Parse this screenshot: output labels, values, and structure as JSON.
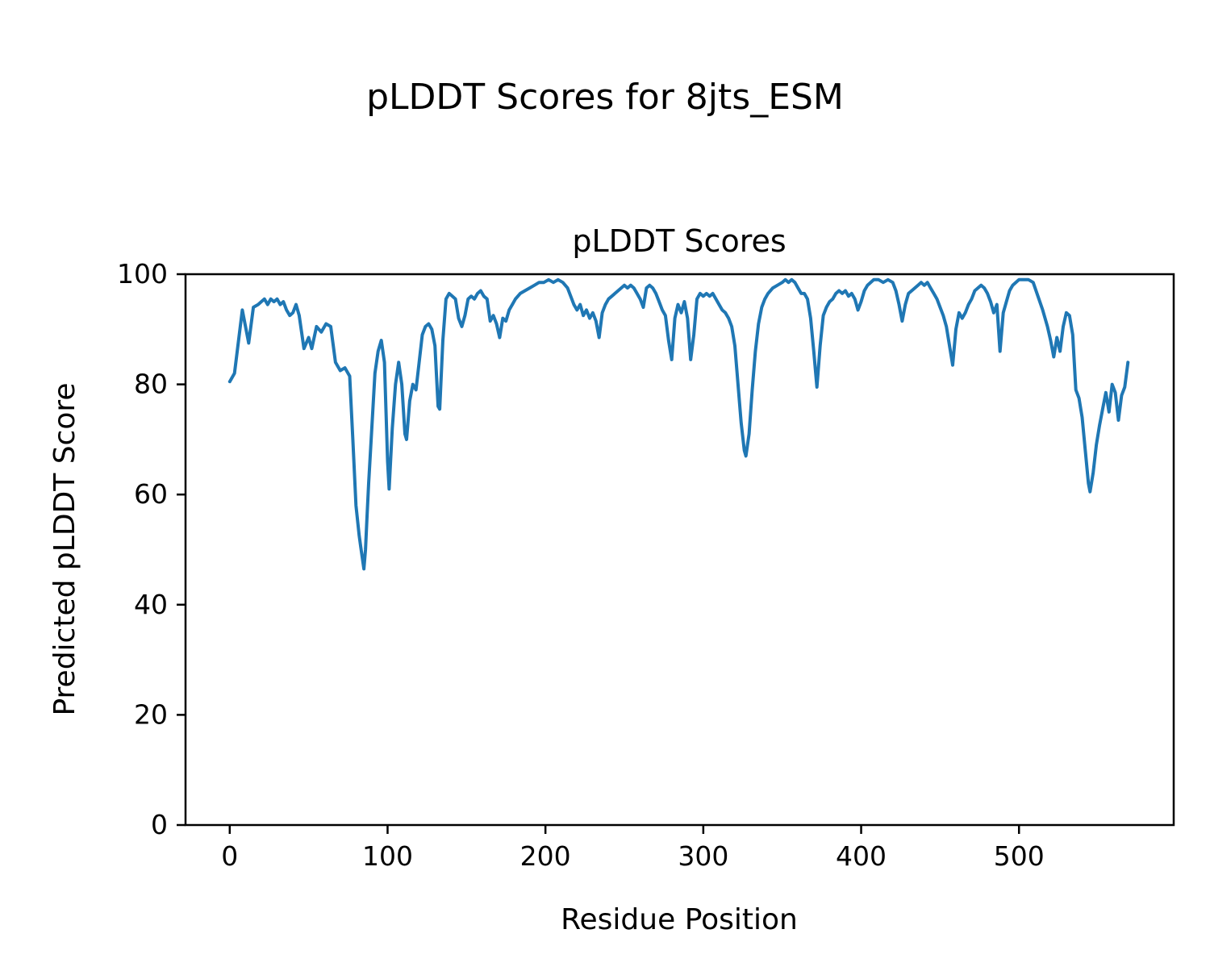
{
  "figure": {
    "background": "#ffffff",
    "spine_color": "#000000"
  },
  "chart_data": {
    "type": "line",
    "suptitle": "pLDDT Scores for 8jts_ESM",
    "title": "pLDDT Scores",
    "xlabel": "Residue Position",
    "ylabel": "Predicted pLDDT Score",
    "xlim": [
      -28,
      598
    ],
    "ylim": [
      0,
      100
    ],
    "xticks": [
      0,
      100,
      200,
      300,
      400,
      500
    ],
    "yticks": [
      0,
      20,
      40,
      60,
      80,
      100
    ],
    "grid": false,
    "legend_position": "none",
    "line_color": "#1f77b4",
    "line_width": 4,
    "series_name": "pLDDT",
    "points": [
      [
        0,
        80.5
      ],
      [
        3,
        82
      ],
      [
        8,
        93.5
      ],
      [
        12,
        87.5
      ],
      [
        15,
        94
      ],
      [
        18,
        94.5
      ],
      [
        20,
        95
      ],
      [
        22,
        95.5
      ],
      [
        24,
        94.5
      ],
      [
        26,
        95.5
      ],
      [
        28,
        95
      ],
      [
        30,
        95.5
      ],
      [
        32,
        94.5
      ],
      [
        34,
        95
      ],
      [
        36,
        93.5
      ],
      [
        38,
        92.5
      ],
      [
        40,
        93
      ],
      [
        42,
        94.5
      ],
      [
        44,
        92.5
      ],
      [
        47,
        86.5
      ],
      [
        50,
        88.5
      ],
      [
        52,
        86.5
      ],
      [
        55,
        90.5
      ],
      [
        58,
        89.5
      ],
      [
        61,
        91
      ],
      [
        64,
        90.5
      ],
      [
        67,
        84
      ],
      [
        70,
        82.5
      ],
      [
        73,
        83
      ],
      [
        76,
        81.5
      ],
      [
        78,
        70
      ],
      [
        80,
        58
      ],
      [
        82,
        52.5
      ],
      [
        83,
        50.5
      ],
      [
        85,
        46.5
      ],
      [
        86,
        50
      ],
      [
        87,
        56
      ],
      [
        88,
        62
      ],
      [
        90,
        72
      ],
      [
        92,
        82
      ],
      [
        94,
        86
      ],
      [
        96,
        88
      ],
      [
        98,
        84
      ],
      [
        100,
        66
      ],
      [
        101,
        61
      ],
      [
        103,
        72
      ],
      [
        105,
        80
      ],
      [
        107,
        84
      ],
      [
        109,
        80
      ],
      [
        111,
        71
      ],
      [
        112,
        70
      ],
      [
        114,
        77
      ],
      [
        116,
        80
      ],
      [
        118,
        79
      ],
      [
        120,
        84
      ],
      [
        122,
        89
      ],
      [
        124,
        90.5
      ],
      [
        126,
        91
      ],
      [
        128,
        90
      ],
      [
        130,
        87
      ],
      [
        132,
        76
      ],
      [
        133,
        75.5
      ],
      [
        135,
        88
      ],
      [
        137,
        95.5
      ],
      [
        139,
        96.5
      ],
      [
        141,
        96
      ],
      [
        143,
        95.5
      ],
      [
        145,
        92
      ],
      [
        147,
        90.5
      ],
      [
        149,
        92.5
      ],
      [
        151,
        95.5
      ],
      [
        153,
        96
      ],
      [
        155,
        95.5
      ],
      [
        157,
        96.5
      ],
      [
        159,
        97
      ],
      [
        161,
        96
      ],
      [
        163,
        95.5
      ],
      [
        165,
        91.5
      ],
      [
        167,
        92.5
      ],
      [
        169,
        91
      ],
      [
        171,
        88.5
      ],
      [
        173,
        92
      ],
      [
        175,
        91.5
      ],
      [
        177,
        93.5
      ],
      [
        179,
        94.5
      ],
      [
        181,
        95.5
      ],
      [
        184,
        96.5
      ],
      [
        187,
        97
      ],
      [
        190,
        97.5
      ],
      [
        193,
        98
      ],
      [
        196,
        98.5
      ],
      [
        199,
        98.5
      ],
      [
        202,
        99
      ],
      [
        205,
        98.5
      ],
      [
        208,
        99
      ],
      [
        211,
        98.5
      ],
      [
        214,
        97.5
      ],
      [
        216,
        96
      ],
      [
        218,
        94.5
      ],
      [
        220,
        93.5
      ],
      [
        222,
        94.5
      ],
      [
        224,
        92.5
      ],
      [
        226,
        93.5
      ],
      [
        228,
        92
      ],
      [
        230,
        93
      ],
      [
        232,
        91.5
      ],
      [
        234,
        88.5
      ],
      [
        236,
        93
      ],
      [
        238,
        94.5
      ],
      [
        240,
        95.5
      ],
      [
        242,
        96
      ],
      [
        244,
        96.5
      ],
      [
        246,
        97
      ],
      [
        248,
        97.5
      ],
      [
        250,
        98
      ],
      [
        252,
        97.5
      ],
      [
        254,
        98
      ],
      [
        256,
        97.5
      ],
      [
        258,
        96.5
      ],
      [
        260,
        95.5
      ],
      [
        262,
        94
      ],
      [
        264,
        97.5
      ],
      [
        266,
        98
      ],
      [
        268,
        97.5
      ],
      [
        270,
        96.5
      ],
      [
        272,
        95
      ],
      [
        274,
        93.5
      ],
      [
        276,
        92.5
      ],
      [
        278,
        88
      ],
      [
        280,
        84.5
      ],
      [
        282,
        92
      ],
      [
        284,
        94.5
      ],
      [
        286,
        93
      ],
      [
        288,
        95
      ],
      [
        290,
        92
      ],
      [
        292,
        84.5
      ],
      [
        294,
        89
      ],
      [
        296,
        95.5
      ],
      [
        298,
        96.5
      ],
      [
        300,
        96
      ],
      [
        302,
        96.5
      ],
      [
        304,
        96
      ],
      [
        306,
        96.5
      ],
      [
        308,
        95.5
      ],
      [
        310,
        94.5
      ],
      [
        312,
        93.5
      ],
      [
        314,
        93
      ],
      [
        316,
        92
      ],
      [
        318,
        90.5
      ],
      [
        320,
        87
      ],
      [
        322,
        80
      ],
      [
        324,
        73
      ],
      [
        326,
        68
      ],
      [
        327,
        67
      ],
      [
        329,
        71
      ],
      [
        331,
        79
      ],
      [
        333,
        86
      ],
      [
        335,
        91
      ],
      [
        337,
        94
      ],
      [
        339,
        95.5
      ],
      [
        341,
        96.5
      ],
      [
        344,
        97.5
      ],
      [
        347,
        98
      ],
      [
        350,
        98.5
      ],
      [
        352,
        99
      ],
      [
        354,
        98.5
      ],
      [
        356,
        99
      ],
      [
        358,
        98.5
      ],
      [
        360,
        97.5
      ],
      [
        362,
        96.5
      ],
      [
        364,
        96.5
      ],
      [
        366,
        95.5
      ],
      [
        368,
        92
      ],
      [
        370,
        86
      ],
      [
        372,
        79.5
      ],
      [
        374,
        87
      ],
      [
        376,
        92.5
      ],
      [
        378,
        94
      ],
      [
        380,
        95
      ],
      [
        382,
        95.5
      ],
      [
        384,
        96.5
      ],
      [
        386,
        97
      ],
      [
        388,
        96.5
      ],
      [
        390,
        97
      ],
      [
        392,
        96
      ],
      [
        394,
        96.5
      ],
      [
        396,
        95.5
      ],
      [
        398,
        93.5
      ],
      [
        400,
        95
      ],
      [
        402,
        97
      ],
      [
        404,
        98
      ],
      [
        406,
        98.5
      ],
      [
        408,
        99
      ],
      [
        411,
        99
      ],
      [
        414,
        98.5
      ],
      [
        417,
        99
      ],
      [
        420,
        98.5
      ],
      [
        422,
        97
      ],
      [
        424,
        94.5
      ],
      [
        426,
        91.5
      ],
      [
        428,
        94.5
      ],
      [
        430,
        96.5
      ],
      [
        432,
        97
      ],
      [
        434,
        97.5
      ],
      [
        436,
        98
      ],
      [
        438,
        98.5
      ],
      [
        440,
        98
      ],
      [
        442,
        98.5
      ],
      [
        444,
        97.5
      ],
      [
        446,
        96.5
      ],
      [
        448,
        95.5
      ],
      [
        450,
        94
      ],
      [
        452,
        92.5
      ],
      [
        454,
        90.5
      ],
      [
        456,
        87
      ],
      [
        458,
        83.5
      ],
      [
        460,
        90
      ],
      [
        462,
        93
      ],
      [
        464,
        92
      ],
      [
        466,
        93
      ],
      [
        468,
        94.5
      ],
      [
        470,
        95.5
      ],
      [
        472,
        97
      ],
      [
        474,
        97.5
      ],
      [
        476,
        98
      ],
      [
        478,
        97.5
      ],
      [
        480,
        96.5
      ],
      [
        482,
        95
      ],
      [
        484,
        93
      ],
      [
        486,
        94.5
      ],
      [
        488,
        86
      ],
      [
        490,
        93
      ],
      [
        492,
        95
      ],
      [
        494,
        97
      ],
      [
        496,
        98
      ],
      [
        498,
        98.5
      ],
      [
        500,
        99
      ],
      [
        503,
        99
      ],
      [
        506,
        99
      ],
      [
        509,
        98.5
      ],
      [
        512,
        96
      ],
      [
        515,
        93.5
      ],
      [
        518,
        90.5
      ],
      [
        520,
        88
      ],
      [
        522,
        85
      ],
      [
        524,
        88.5
      ],
      [
        526,
        86
      ],
      [
        528,
        90.5
      ],
      [
        530,
        93
      ],
      [
        532,
        92.5
      ],
      [
        534,
        89
      ],
      [
        536,
        79
      ],
      [
        538,
        77.5
      ],
      [
        540,
        74
      ],
      [
        542,
        68
      ],
      [
        544,
        62
      ],
      [
        545,
        60.5
      ],
      [
        547,
        64
      ],
      [
        549,
        69
      ],
      [
        551,
        72.5
      ],
      [
        553,
        75.5
      ],
      [
        555,
        78.5
      ],
      [
        557,
        75
      ],
      [
        559,
        80
      ],
      [
        561,
        78.5
      ],
      [
        563,
        73.5
      ],
      [
        565,
        78
      ],
      [
        567,
        79.5
      ],
      [
        569,
        84
      ]
    ]
  }
}
